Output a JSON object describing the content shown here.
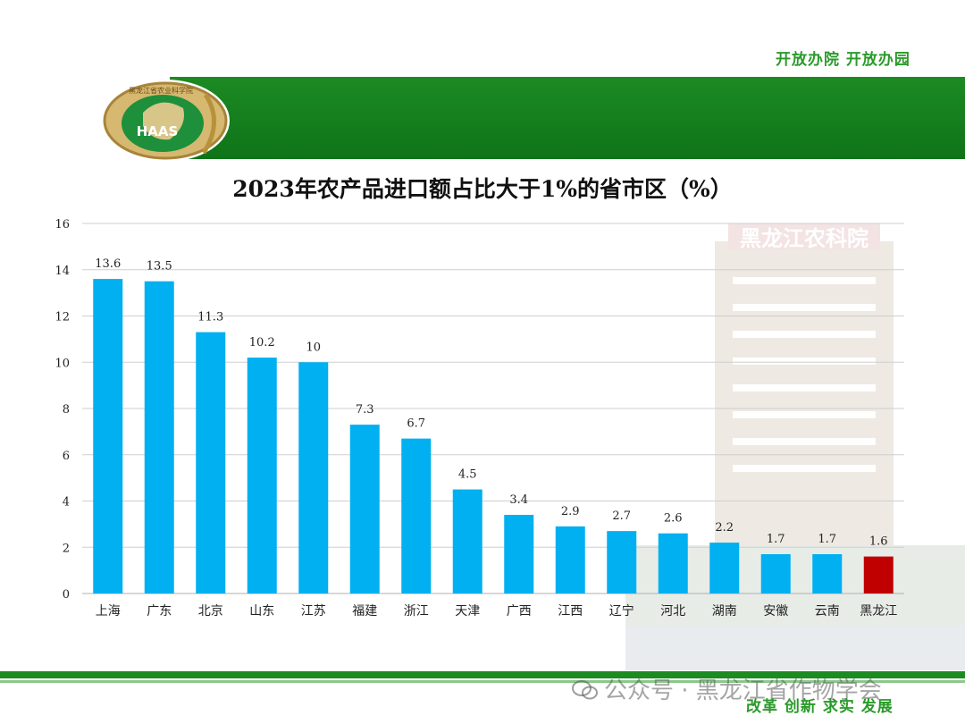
{
  "header": {
    "slogan_top": "开放办院  开放办园",
    "logo_text": "HAAS",
    "logo_ring_text": "黑龙江省农业科学院"
  },
  "background": {
    "sign_text": "黑龙江农科院"
  },
  "footer": {
    "watermark": "公众号 · 黑龙江省作物学会",
    "slogan_bottom": "改革 创新 求实  发展"
  },
  "colors": {
    "bar": "#00b0f0",
    "highlight": "#c00000",
    "band": "#1b8b22"
  },
  "chart_data": {
    "type": "bar",
    "title": "2023年农产品进口额占比大于1%的省市区（%）",
    "xlabel": "",
    "ylabel": "",
    "categories": [
      "上海",
      "广东",
      "北京",
      "山东",
      "江苏",
      "福建",
      "浙江",
      "天津",
      "广西",
      "江西",
      "辽宁",
      "河北",
      "湖南",
      "安徽",
      "云南",
      "黑龙江"
    ],
    "values": [
      13.6,
      13.5,
      11.3,
      10.2,
      10,
      7.3,
      6.7,
      4.5,
      3.4,
      2.9,
      2.7,
      2.6,
      2.2,
      1.7,
      1.7,
      1.6
    ],
    "data_labels": [
      "13.6",
      "13.5",
      "11.3",
      "10.2",
      "10",
      "7.3",
      "6.7",
      "4.5",
      "3.4",
      "2.9",
      "2.7",
      "2.6",
      "2.2",
      "1.7",
      "1.7",
      "1.6"
    ],
    "highlight_category": "黑龙江",
    "ylim": [
      0,
      16
    ],
    "yticks": [
      0,
      2,
      4,
      6,
      8,
      10,
      12,
      14,
      16
    ],
    "grid": true,
    "legend": "none"
  }
}
